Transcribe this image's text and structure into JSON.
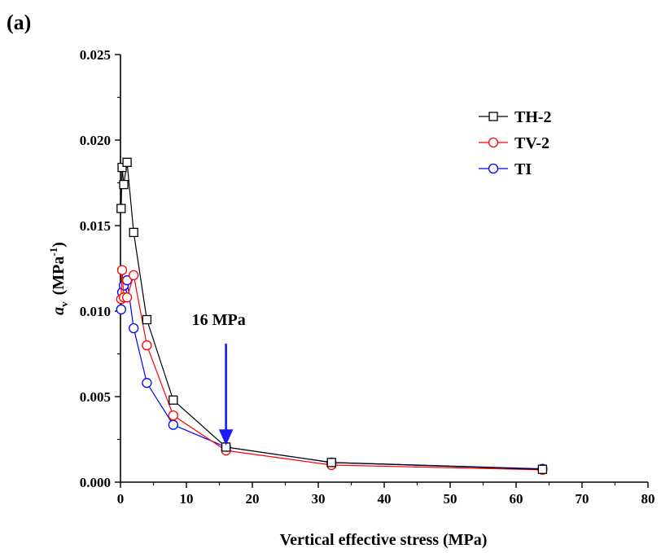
{
  "panel_label": "(a)",
  "colors": {
    "axis": "#000000",
    "TH-2": "#000000",
    "TV-2": "#ff0000",
    "TI": "#0000ff",
    "annotation": "#1a1aff"
  },
  "chart_data": {
    "type": "line",
    "title": "",
    "xlabel": "Vertical effective stress (MPa)",
    "ylabel_main": "a",
    "ylabel_sub": "v",
    "ylabel_unit": "(MPa",
    "ylabel_unit_sup": "-1",
    "ylabel_close": ")",
    "xlim": [
      0,
      80
    ],
    "ylim": [
      0,
      0.025
    ],
    "x_ticks": [
      0,
      10,
      20,
      30,
      40,
      50,
      60,
      70,
      80
    ],
    "y_ticks": [
      0.0,
      0.005,
      0.01,
      0.015,
      0.02,
      0.025
    ],
    "x_tick_labels": [
      "0",
      "10",
      "20",
      "30",
      "40",
      "50",
      "60",
      "70",
      "80"
    ],
    "y_tick_labels": [
      "0.000",
      "0.005",
      "0.010",
      "0.015",
      "0.020",
      "0.025"
    ],
    "grid": false,
    "legend_position": "top-right",
    "series": [
      {
        "name": "TH-2",
        "marker": "square",
        "color": "#000000",
        "points": [
          [
            0.1,
            0.016
          ],
          [
            0.25,
            0.0184
          ],
          [
            0.5,
            0.0174
          ],
          [
            1.0,
            0.0187
          ],
          [
            2.0,
            0.0146
          ],
          [
            4.0,
            0.0095
          ],
          [
            8.0,
            0.0048
          ],
          [
            16.0,
            0.00205
          ],
          [
            32.0,
            0.00115
          ],
          [
            64.0,
            0.00075
          ]
        ]
      },
      {
        "name": "TV-2",
        "marker": "circle",
        "color": "#ff0000",
        "points": [
          [
            0.1,
            0.0107
          ],
          [
            0.25,
            0.0124
          ],
          [
            0.5,
            0.0108
          ],
          [
            1.0,
            0.0108
          ],
          [
            2.0,
            0.0121
          ],
          [
            4.0,
            0.008
          ],
          [
            8.0,
            0.0039
          ],
          [
            16.0,
            0.00185
          ],
          [
            32.0,
            0.001
          ],
          [
            64.0,
            0.00072
          ]
        ]
      },
      {
        "name": "TI",
        "marker": "circle",
        "color": "#0000ff",
        "points": [
          [
            0.1,
            0.0101
          ],
          [
            0.25,
            0.0111
          ],
          [
            0.5,
            0.0115
          ],
          [
            1.0,
            0.0118
          ],
          [
            2.0,
            0.009
          ],
          [
            4.0,
            0.0058
          ],
          [
            8.0,
            0.00335
          ],
          [
            16.0,
            0.00205
          ],
          [
            32.0,
            0.00115
          ],
          [
            64.0,
            0.00078
          ]
        ]
      }
    ],
    "annotation": {
      "text": "16 MPa",
      "x": 16,
      "y_from": 0.0081,
      "y_to": 0.0022
    }
  }
}
